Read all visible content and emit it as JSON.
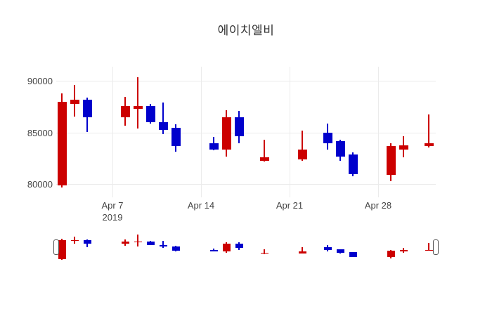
{
  "title": "에이치엘비",
  "colors": {
    "increasing": "#cc0000",
    "decreasing": "#0000cc",
    "grid": "#ebebeb",
    "tick_text": "#444444",
    "title_text": "#333333",
    "background": "#ffffff",
    "slider_handle_border": "#555555"
  },
  "y_axis": {
    "ticks": [
      {
        "label": "90000",
        "value": 90000
      },
      {
        "label": "85000",
        "value": 85000
      },
      {
        "label": "80000",
        "value": 80000
      }
    ],
    "range": [
      78750,
      91400
    ]
  },
  "x_axis": {
    "ticks": [
      {
        "label": "Apr 7",
        "sublabel": "2019",
        "date": "2019-04-07"
      },
      {
        "label": "Apr 14",
        "sublabel": "",
        "date": "2019-04-14"
      },
      {
        "label": "Apr 21",
        "sublabel": "",
        "date": "2019-04-21"
      },
      {
        "label": "Apr 28",
        "sublabel": "",
        "date": "2019-04-28"
      }
    ]
  },
  "rangeslider": {
    "visible": true
  },
  "chart_data": {
    "type": "candlestick",
    "title": "에이치엘비",
    "legend": "none",
    "grid": true,
    "increasing_color": "#cc0000",
    "decreasing_color": "#0000cc",
    "ylim": [
      78750,
      91400
    ],
    "candles": [
      {
        "date": "2019-04-03",
        "open": 79900,
        "high": 88800,
        "low": 79700,
        "close": 88000
      },
      {
        "date": "2019-04-04",
        "open": 87800,
        "high": 89600,
        "low": 86600,
        "close": 88200
      },
      {
        "date": "2019-04-05",
        "open": 88200,
        "high": 88400,
        "low": 85100,
        "close": 86500
      },
      {
        "date": "2019-04-08",
        "open": 86500,
        "high": 88500,
        "low": 85700,
        "close": 87600
      },
      {
        "date": "2019-04-09",
        "open": 87300,
        "high": 90400,
        "low": 85400,
        "close": 87600
      },
      {
        "date": "2019-04-10",
        "open": 87600,
        "high": 87800,
        "low": 85900,
        "close": 86000
      },
      {
        "date": "2019-04-11",
        "open": 86000,
        "high": 87900,
        "low": 84900,
        "close": 85300
      },
      {
        "date": "2019-04-12",
        "open": 85500,
        "high": 85800,
        "low": 83200,
        "close": 83700
      },
      {
        "date": "2019-04-15",
        "open": 84000,
        "high": 84600,
        "low": 83300,
        "close": 83400
      },
      {
        "date": "2019-04-16",
        "open": 83400,
        "high": 87200,
        "low": 82700,
        "close": 86500
      },
      {
        "date": "2019-04-17",
        "open": 86500,
        "high": 87100,
        "low": 84000,
        "close": 84700
      },
      {
        "date": "2019-04-19",
        "open": 82300,
        "high": 84300,
        "low": 82200,
        "close": 82600
      },
      {
        "date": "2019-04-22",
        "open": 82400,
        "high": 85200,
        "low": 82300,
        "close": 83400
      },
      {
        "date": "2019-04-24",
        "open": 85000,
        "high": 85900,
        "low": 83400,
        "close": 84000
      },
      {
        "date": "2019-04-25",
        "open": 84200,
        "high": 84300,
        "low": 82300,
        "close": 82700
      },
      {
        "date": "2019-04-26",
        "open": 82900,
        "high": 83100,
        "low": 80800,
        "close": 81000
      },
      {
        "date": "2019-04-29",
        "open": 80900,
        "high": 84000,
        "low": 80300,
        "close": 83700
      },
      {
        "date": "2019-04-30",
        "open": 83400,
        "high": 84700,
        "low": 82600,
        "close": 83800
      },
      {
        "date": "2019-05-02",
        "open": 83700,
        "high": 86800,
        "low": 83600,
        "close": 84000
      }
    ]
  }
}
